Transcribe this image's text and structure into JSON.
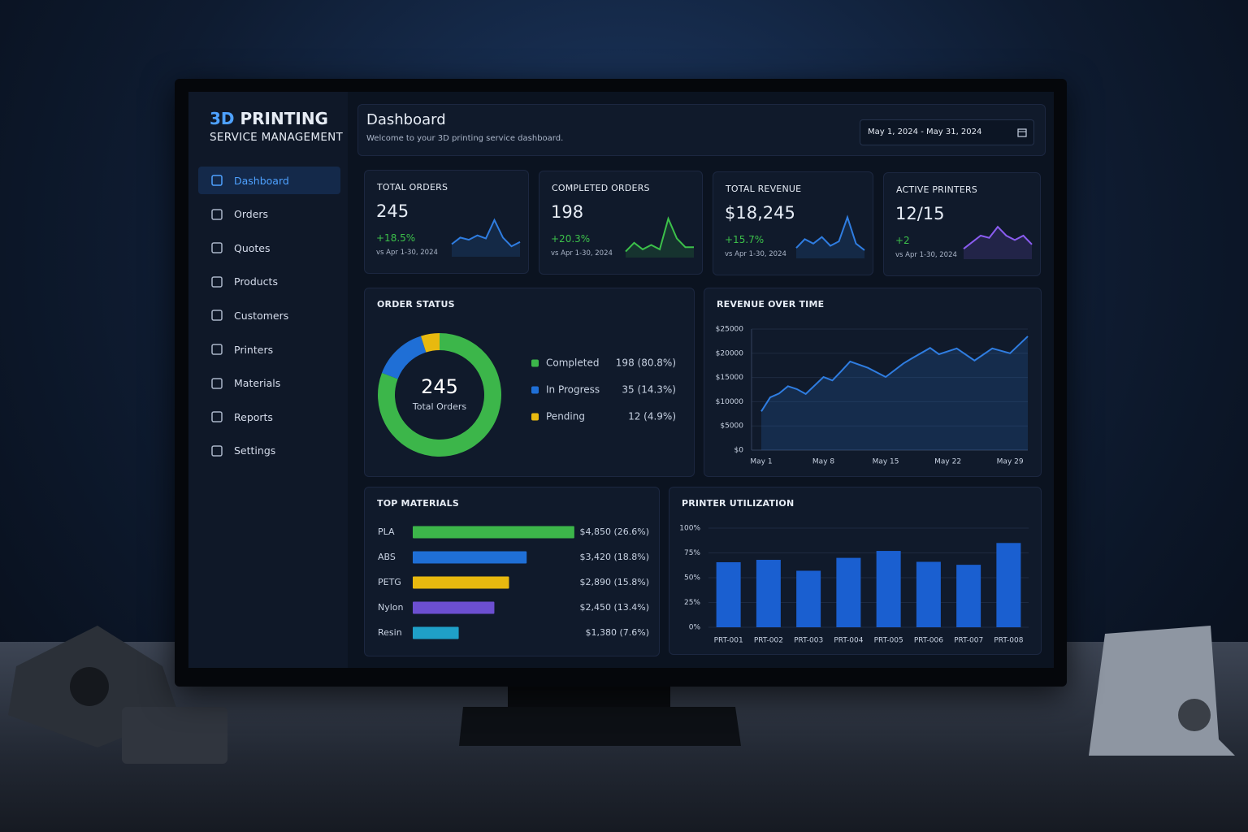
{
  "sidebar": {
    "brand_highlight": "3D",
    "brand": "PRINTING",
    "subtitle": "SERVICE MANAGEMENT",
    "nav": [
      "Dashboard",
      "Orders",
      "Quotes",
      "Products",
      "Customers",
      "Printers",
      "Materials",
      "Reports",
      "Settings"
    ],
    "active": 0
  },
  "header": {
    "title": "Dashboard",
    "subtitle": "Welcome to your 3D printing service dashboard.",
    "date_range": "May 1, 2024 - May 31, 2024"
  },
  "kpis": [
    {
      "label": "TOTAL ORDERS",
      "value": "245",
      "change": "+18.5%",
      "comparison": "vs Apr 1-30, 2024",
      "sparkline": {
        "values": [
          25,
          40,
          35,
          45,
          38,
          80,
          40,
          20,
          30
        ],
        "ylim": [
          0,
          100
        ],
        "color": "#2f7de1"
      }
    },
    {
      "label": "COMPLETED ORDERS",
      "value": "198",
      "change": "+20.3%",
      "comparison": "vs Apr 1-30, 2024",
      "sparkline": {
        "values": [
          10,
          30,
          15,
          25,
          15,
          85,
          40,
          20,
          20
        ],
        "ylim": [
          0,
          100
        ],
        "color": "#3cc04a"
      }
    },
    {
      "label": "TOTAL REVENUE",
      "value": "$18,245",
      "change": "+15.7%",
      "comparison": "vs Apr 1-30, 2024",
      "sparkline": {
        "values": [
          20,
          40,
          30,
          45,
          25,
          35,
          90,
          30,
          15
        ],
        "ylim": [
          0,
          100
        ],
        "color": "#2f7de1"
      }
    },
    {
      "label": "ACTIVE PRINTERS",
      "value": "12/15",
      "change": "+2",
      "comparison": "vs Apr 1-30, 2024",
      "sparkline": {
        "values": [
          20,
          35,
          50,
          45,
          70,
          50,
          40,
          50,
          30
        ],
        "ylim": [
          0,
          100
        ],
        "color": "#8a5cf0"
      }
    }
  ],
  "chart_data": [
    {
      "type": "pie",
      "title": "ORDER STATUS",
      "center_value": 245,
      "center_label": "Total Orders",
      "categories": [
        "Completed",
        "In Progress",
        "Pending"
      ],
      "values": [
        198,
        35,
        12
      ],
      "value_labels": [
        "198 (80.8%)",
        "35 (14.3%)",
        "12 (4.9%)"
      ],
      "colors": [
        "#3cb64a",
        "#1f6fd6",
        "#e8b90f"
      ]
    },
    {
      "type": "line",
      "title": "REVENUE OVER TIME",
      "color": "#2f7de1",
      "x": [
        1,
        2,
        3,
        4,
        5,
        6,
        8,
        9,
        10,
        11,
        13,
        15,
        17,
        18,
        20,
        21,
        23,
        25,
        27,
        29,
        31
      ],
      "values": [
        8000,
        10900,
        11700,
        13200,
        12600,
        11600,
        15100,
        14400,
        16300,
        18300,
        17000,
        15100,
        17900,
        19000,
        21100,
        19800,
        21000,
        18500,
        21000,
        20000,
        23500
      ],
      "xlim": [
        1,
        31
      ],
      "xticks": [
        {
          "value": 1,
          "label": "May 1"
        },
        {
          "value": 8,
          "label": "May 8"
        },
        {
          "value": 15,
          "label": "May 15"
        },
        {
          "value": 22,
          "label": "May 22"
        },
        {
          "value": 29,
          "label": "May 29"
        }
      ],
      "ylim": [
        0,
        25000
      ],
      "yticks": [
        {
          "value": 0,
          "label": "$0"
        },
        {
          "value": 5000,
          "label": "$5000"
        },
        {
          "value": 10000,
          "label": "$10000"
        },
        {
          "value": 15000,
          "label": "$15000"
        },
        {
          "value": 20000,
          "label": "$20000"
        },
        {
          "value": 25000,
          "label": "$25000"
        }
      ],
      "grid": true
    },
    {
      "type": "bar",
      "horizontal": true,
      "title": "TOP MATERIALS",
      "categories": [
        "PLA",
        "ABS",
        "PETG",
        "Nylon",
        "Resin"
      ],
      "values": [
        4850,
        3420,
        2890,
        2450,
        1380
      ],
      "value_labels": [
        "$4,850 (26.6%)",
        "$3,420 (18.8%)",
        "$2,890 (15.8%)",
        "$2,450 (13.4%)",
        "$1,380 (7.6%)"
      ],
      "colors": [
        "#3cb64a",
        "#1f6fd6",
        "#e8b90f",
        "#6c4fd1",
        "#1fa0c8"
      ],
      "xlim": [
        0,
        5000
      ]
    },
    {
      "type": "bar",
      "title": "PRINTER UTILIZATION",
      "color": "#1a5fd0",
      "categories": [
        "PRT-001",
        "PRT-002",
        "PRT-003",
        "PRT-004",
        "PRT-005",
        "PRT-006",
        "PRT-007",
        "PRT-008"
      ],
      "values": [
        65.6,
        68,
        57,
        70,
        77,
        66,
        63,
        85
      ],
      "ylim": [
        0,
        100
      ],
      "yticks": [
        {
          "value": 0,
          "label": "0%"
        },
        {
          "value": 25,
          "label": "25%"
        },
        {
          "value": 50,
          "label": "50%"
        },
        {
          "value": 75,
          "label": "75%"
        },
        {
          "value": 100,
          "label": "100%"
        }
      ],
      "grid": true
    }
  ]
}
